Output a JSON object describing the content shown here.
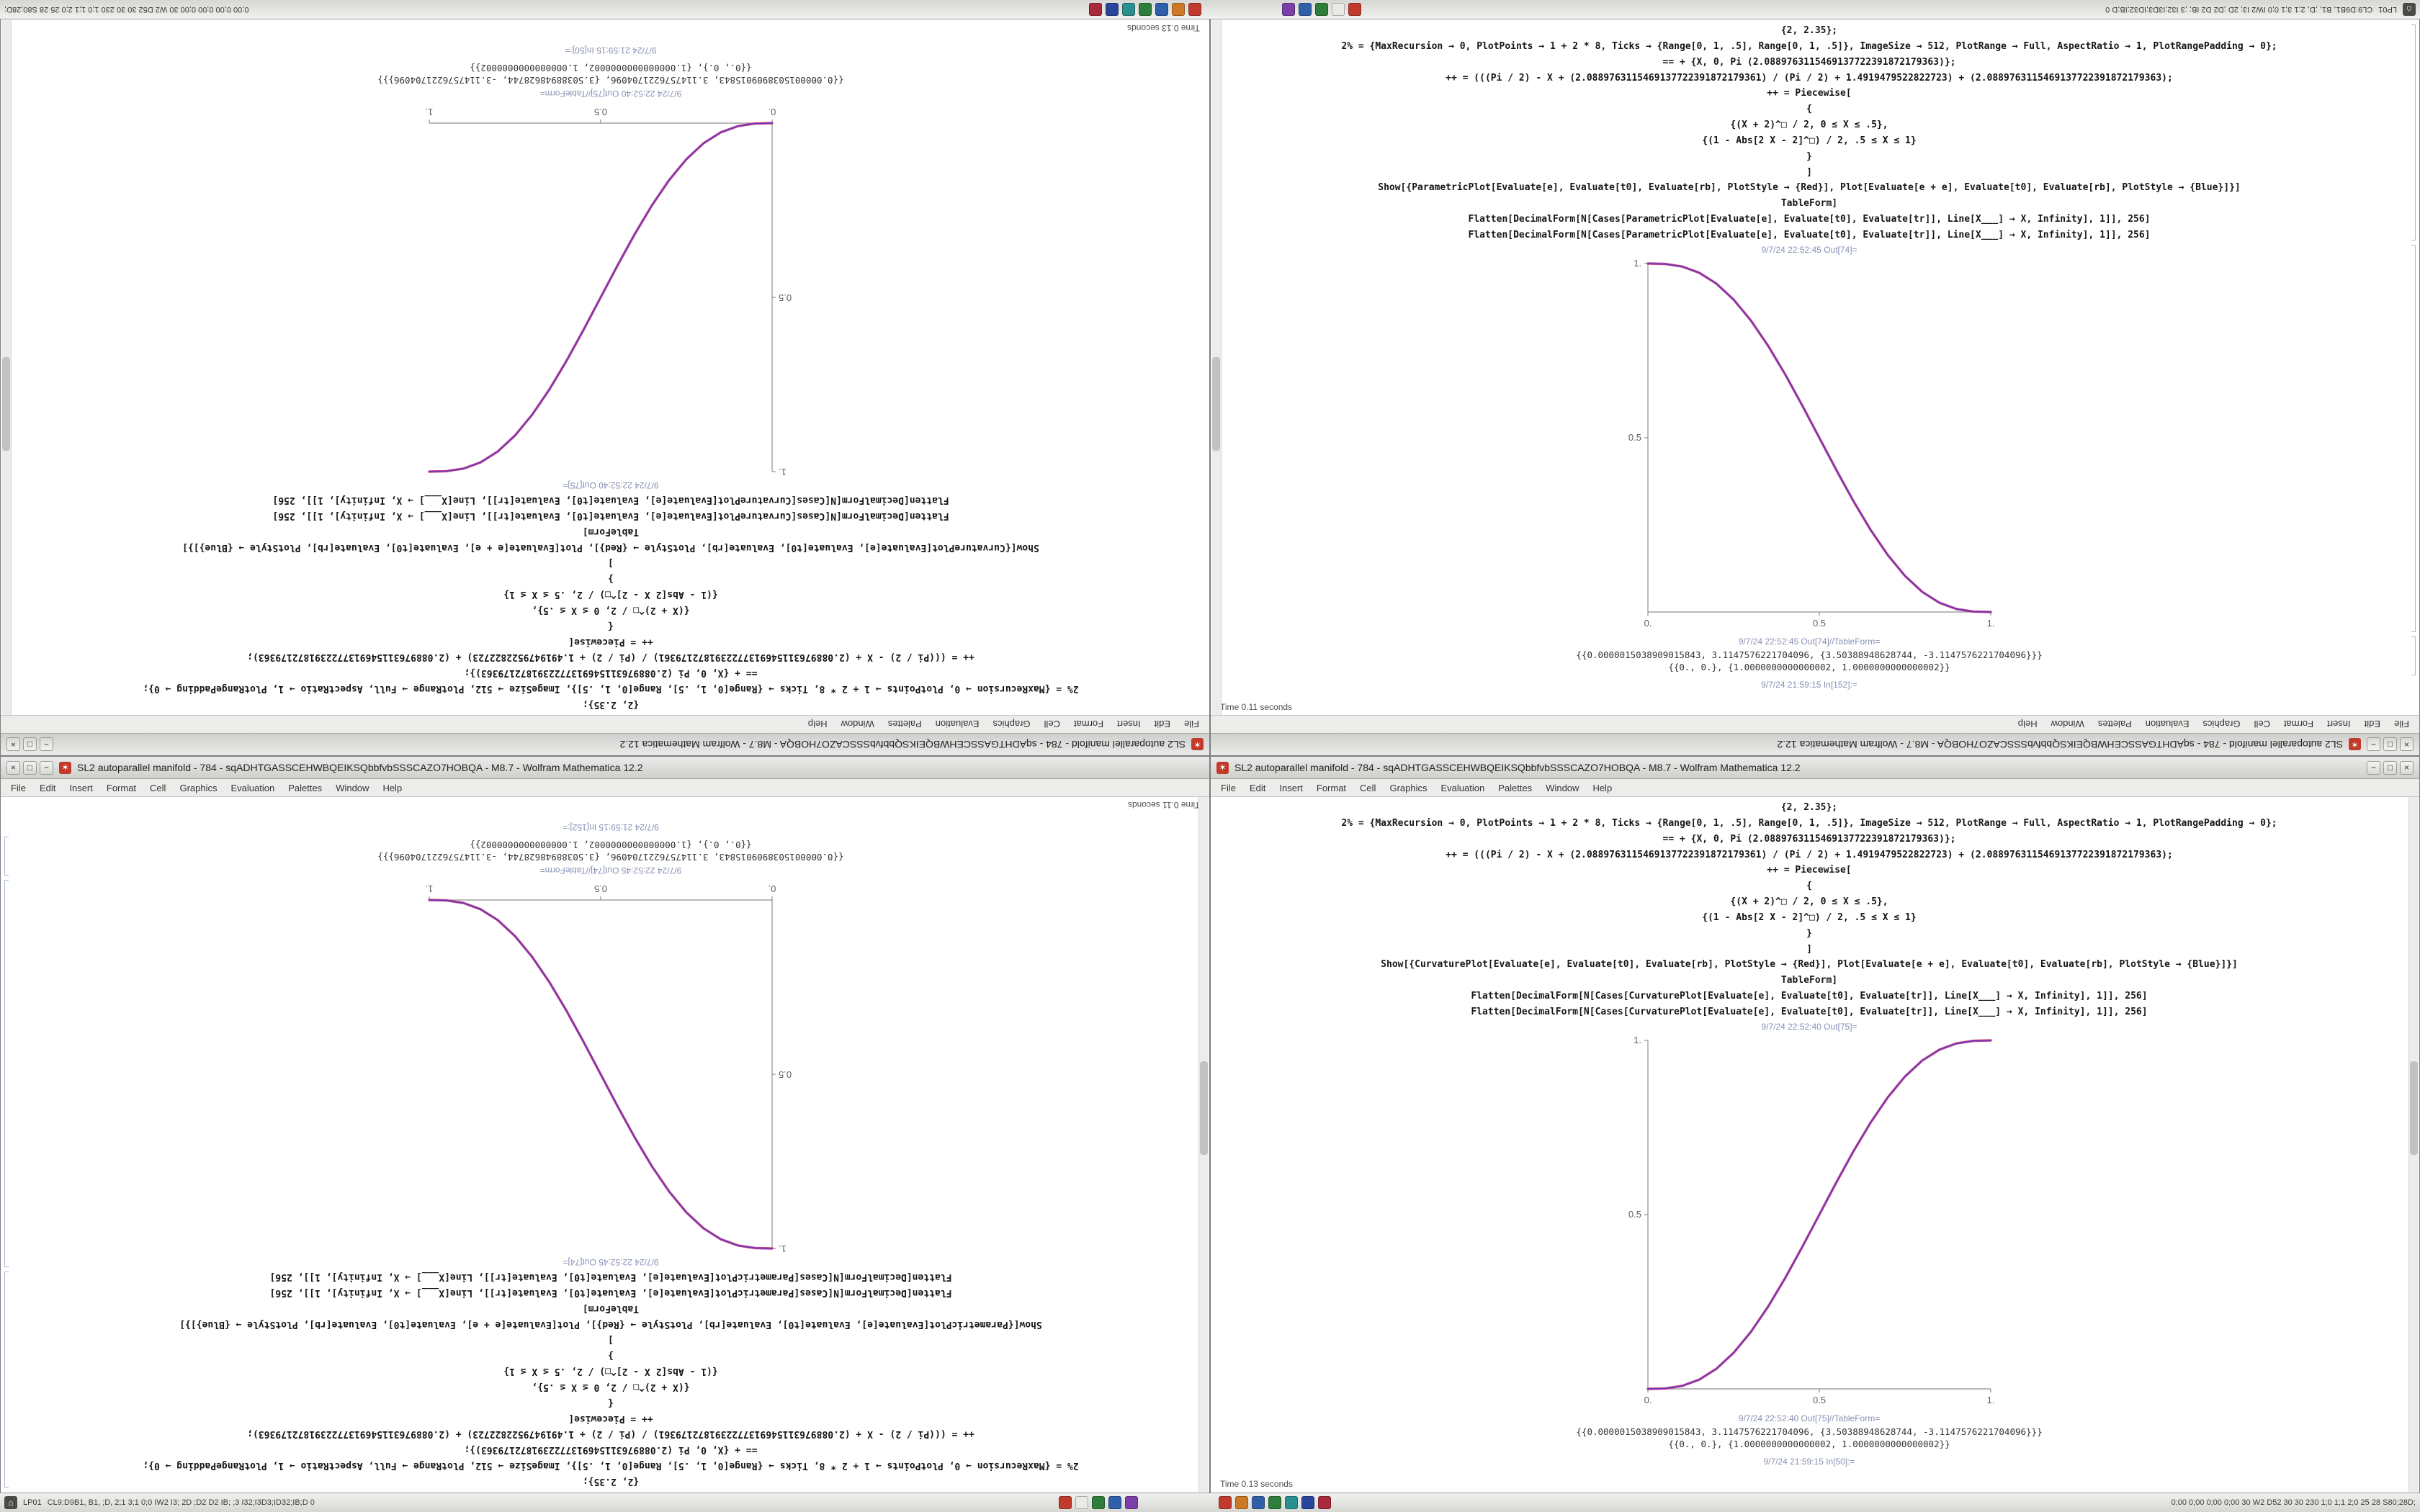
{
  "window": {
    "title": "SL2 autoparallel manifold - 784 - sqADHTGASSCEHWBQEIKSQbbfvbSSSCAZO7HOBQA - M8.7 - Wolfram Mathematica 12.2",
    "menu": [
      "File",
      "Edit",
      "Insert",
      "Format",
      "Cell",
      "Graphics",
      "Evaluation",
      "Palettes",
      "Window",
      "Help"
    ],
    "controls": {
      "minimize": "−",
      "maximize": "□",
      "close": "×"
    }
  },
  "notebook_a": {
    "cells": [
      "{2, 2.35};",
      "2% = {MaxRecursion → 0, PlotPoints → 1 + 2 * 8, Ticks → {Range[0, 1, .5], Range[0, 1, .5]}, ImageSize → 512, PlotRange → Full, AspectRatio → 1, PlotRangePadding → 0};",
      "== + {X, 0, Pi (2.0889763115469137722391872179363)};",
      "++ = (((Pi / 2) - X + (2.0889763115469137722391872179361) / (Pi / 2) + 1.4919479522822723) + (2.0889763115469137722391872179363);",
      "++ = Piecewise[",
      "{",
      "{(X + 2)^□ / 2, 0 ≤ X ≤ .5},",
      "{(1 - Abs[2 X - 2]^□) / 2, .5 ≤ X ≤ 1}",
      "}",
      "]",
      "Show[{CurvaturePlot[Evaluate[e], Evaluate[t0], Evaluate[rb], PlotStyle → {Red}], Plot[Evaluate[e + e], Evaluate[t0], Evaluate[rb], PlotStyle → {Blue}]}]",
      "TableForm]",
      "Flatten[DecimalForm[N[Cases[CurvaturePlot[Evaluate[e], Evaluate[t0], Evaluate[tr]], Line[X___] → X, Infinity], 1]], 256]",
      "Flatten[DecimalForm[N[Cases[CurvaturePlot[Evaluate[e], Evaluate[t0], Evaluate[tr]], Line[X___] → X, Infinity], 1]], 256]"
    ],
    "out_label": "9/7/24 22:52:40 Out[75]=",
    "tableform_label": "9/7/24 22:52:40 Out[75]//TableForm=",
    "outputs": [
      "{{0.0000015038909015843, 3.1147576221704096, {3.50388948628744, -3.1147576221704096}}}",
      "{{0., 0.}, {1.0000000000000002, 1.0000000000000002}}"
    ],
    "in_label": "9/7/24 21:59:15 In[50]:=",
    "status": "Time 0.13 seconds",
    "chart_data": {
      "type": "line",
      "title": "",
      "xlabel": "",
      "ylabel": "",
      "xlim": [
        0,
        1
      ],
      "ylim": [
        0,
        1
      ],
      "grid": false,
      "xticks": [
        "0.",
        "0.5",
        "1."
      ],
      "yticks": [
        "0.5",
        "1."
      ],
      "x": [
        0,
        0.05,
        0.1,
        0.15,
        0.2,
        0.25,
        0.3,
        0.35,
        0.4,
        0.45,
        0.5,
        0.55,
        0.6,
        0.65,
        0.7,
        0.75,
        0.8,
        0.85,
        0.9,
        0.95,
        1
      ],
      "series": [
        {
          "name": "CurvaturePlot (Red)",
          "color": "#cc2a6e",
          "values": [
            0,
            0.0012,
            0.0086,
            0.0266,
            0.0579,
            0.1035,
            0.1631,
            0.2352,
            0.3174,
            0.4069,
            0.5,
            0.5931,
            0.6826,
            0.7648,
            0.8369,
            0.8965,
            0.9421,
            0.9734,
            0.9914,
            0.9988,
            1
          ]
        },
        {
          "name": "Plot (Blue)",
          "color": "#5a35c8",
          "values": [
            0,
            0.0012,
            0.0086,
            0.0266,
            0.0579,
            0.1035,
            0.1631,
            0.2352,
            0.3174,
            0.4069,
            0.5,
            0.5931,
            0.6826,
            0.7648,
            0.8369,
            0.8965,
            0.9421,
            0.9734,
            0.9914,
            0.9988,
            1
          ]
        }
      ]
    }
  },
  "notebook_b": {
    "cells": [
      "{2, 2.35};",
      "2% = {MaxRecursion → 0, PlotPoints → 1 + 2 * 8, Ticks → {Range[0, 1, .5], Range[0, 1, .5]}, ImageSize → 512, PlotRange → Full, AspectRatio → 1, PlotRangePadding → 0};",
      "== + {X, 0, Pi (2.0889763115469137722391872179363)};",
      "++ = (((Pi / 2) - X + (2.0889763115469137722391872179361) / (Pi / 2) + 1.4919479522822723) + (2.0889763115469137722391872179363);",
      "++ = Piecewise[",
      "{",
      "{(X + 2)^□ / 2, 0 ≤ X ≤ .5},",
      "{(1 - Abs[2 X - 2]^□) / 2, .5 ≤ X ≤ 1}",
      "}",
      "]",
      "Show[{ParametricPlot[Evaluate[e], Evaluate[t0], Evaluate[rb], PlotStyle → {Red}], Plot[Evaluate[e + e], Evaluate[t0], Evaluate[rb], PlotStyle → {Blue}]}]",
      "TableForm]",
      "Flatten[DecimalForm[N[Cases[ParametricPlot[Evaluate[e], Evaluate[t0], Evaluate[tr]], Line[X___] → X, Infinity], 1]], 256]",
      "Flatten[DecimalForm[N[Cases[ParametricPlot[Evaluate[e], Evaluate[t0], Evaluate[tr]], Line[X___] → X, Infinity], 1]], 256]"
    ],
    "out_label": "9/7/24 22:52:45 Out[74]=",
    "tableform_label": "9/7/24 22:52:45 Out[74]//TableForm=",
    "outputs": [
      "{{0.0000015038909015843, 3.1147576221704096, {3.50388948628744, -3.1147576221704096}}}",
      "{{0., 0.}, {1.0000000000000002, 1.0000000000000002}}"
    ],
    "in_label": "9/7/24 21:59:15 In[152]:=",
    "status": "Time 0.11 seconds",
    "chart_data": {
      "type": "line",
      "title": "",
      "xlabel": "",
      "ylabel": "",
      "xlim": [
        0,
        1
      ],
      "ylim": [
        0,
        1
      ],
      "grid": false,
      "xticks": [
        "0.",
        "0.5",
        "1."
      ],
      "yticks": [
        "0.5",
        "1."
      ],
      "x": [
        0,
        0.05,
        0.1,
        0.15,
        0.2,
        0.25,
        0.3,
        0.35,
        0.4,
        0.45,
        0.5,
        0.55,
        0.6,
        0.65,
        0.7,
        0.75,
        0.8,
        0.85,
        0.9,
        0.95,
        1
      ],
      "series": [
        {
          "name": "ParametricPlot (Red)",
          "color": "#cc2a6e",
          "values": [
            1,
            0.9988,
            0.9914,
            0.9734,
            0.9421,
            0.8965,
            0.8369,
            0.7648,
            0.6826,
            0.5931,
            0.5,
            0.4069,
            0.3174,
            0.2352,
            0.1631,
            0.1035,
            0.0579,
            0.0266,
            0.0086,
            0.0012,
            0
          ]
        },
        {
          "name": "Plot (Blue)",
          "color": "#5a35c8",
          "values": [
            1,
            0.9988,
            0.9914,
            0.9734,
            0.9421,
            0.8965,
            0.8369,
            0.7648,
            0.6826,
            0.5931,
            0.5,
            0.4069,
            0.3174,
            0.2352,
            0.1631,
            0.1035,
            0.0579,
            0.0266,
            0.0086,
            0.0012,
            0
          ]
        }
      ]
    }
  },
  "taskbar": {
    "home_label": "LP01",
    "home_glyph": "⌂",
    "status_left": "CL9:D9B1, B1, ;D, 2;1 3;1 0;0 IW2 I3; 2D ;D2 D2 IB; ;3 I32;I3D3;ID32;IB;D 0",
    "status_right": "0;00 0;00 0;00 0;00 30 W2 D52 30 30 230 1;0 1;1 2;0 25 28 S80;28D;",
    "icons_group1": [
      {
        "name": "app-red",
        "color": "#c13a2e"
      },
      {
        "name": "app-gray",
        "color": "#e9e9e7"
      },
      {
        "name": "app-green",
        "color": "#2f7d3c"
      },
      {
        "name": "app-blue",
        "color": "#2f5fa8"
      },
      {
        "name": "app-purple",
        "color": "#7a3fa8"
      }
    ],
    "icons_group2": [
      {
        "name": "app-red",
        "color": "#c13a2e"
      },
      {
        "name": "app-orange",
        "color": "#cc7a28"
      },
      {
        "name": "app-blue",
        "color": "#2f5fa8"
      },
      {
        "name": "app-green",
        "color": "#2f7d3c"
      },
      {
        "name": "app-teal",
        "color": "#2a8f8f"
      },
      {
        "name": "app-navy",
        "color": "#28459a"
      },
      {
        "name": "app-crimson",
        "color": "#a82a3c"
      }
    ]
  }
}
